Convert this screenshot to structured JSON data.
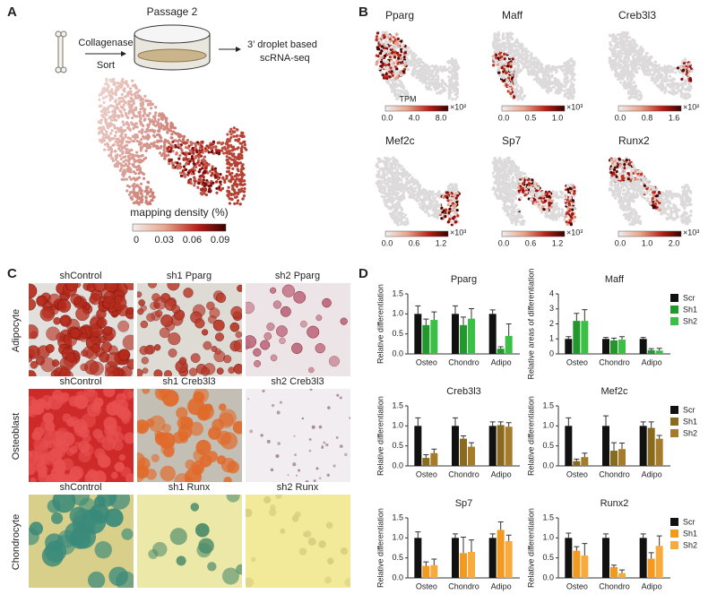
{
  "panel_labels": [
    "A",
    "B",
    "C",
    "D"
  ],
  "panel_a": {
    "passage": "Passage 2",
    "step1": "Collagenase",
    "step2": "Sort",
    "method_line1": "3’ droplet based",
    "method_line2": "scRNA-seq",
    "colorbar_title": "mapping density (%)",
    "colorbar_ticks": [
      "0",
      "0.03",
      "0.06",
      "0.09"
    ]
  },
  "panel_b": {
    "unit": "TPM",
    "genes": [
      {
        "name": "Pparg",
        "ticks": [
          "0.0",
          "4.0",
          "8.0"
        ],
        "exponent": "×10²"
      },
      {
        "name": "Maff",
        "ticks": [
          "0.0",
          "0.5",
          "1.0"
        ],
        "exponent": "×10³"
      },
      {
        "name": "Creb3l3",
        "ticks": [
          "0.0",
          "0.8",
          "1.6"
        ],
        "exponent": "×10²"
      },
      {
        "name": "Mef2c",
        "ticks": [
          "0.0",
          "0.6",
          "1.2"
        ],
        "exponent": "×10³"
      },
      {
        "name": "Sp7",
        "ticks": [
          "0.0",
          "0.6",
          "1.2"
        ],
        "exponent": "×10³"
      },
      {
        "name": "Runx2",
        "ticks": [
          "0.0",
          "1.0",
          "2.0"
        ],
        "exponent": "×10³"
      }
    ]
  },
  "panel_c": {
    "rows": [
      {
        "label": "Adipocyte",
        "images": [
          "shControl",
          "sh1 Pparg",
          "sh2 Pparg"
        ]
      },
      {
        "label": "Osteoblast",
        "images": [
          "shControl",
          "sh1 Creb3l3",
          "sh2 Creb3l3"
        ]
      },
      {
        "label": "Chondrocyte",
        "images": [
          "shControl",
          "sh1 Runx",
          "sh2 Runx"
        ]
      }
    ]
  },
  "chart_data": [
    {
      "type": "bar",
      "categories": [
        "Osteo",
        "Chondro",
        "Adipo"
      ],
      "series": [
        {
          "name": "Scr",
          "color": "#111111"
        },
        {
          "name": "Sh1",
          "color": "#1f9a2a"
        },
        {
          "name": "Sh2",
          "color": "#3cbf46"
        }
      ],
      "subplots": [
        {
          "title": "Pparg",
          "ylabel": "Relative differentiation",
          "ylim": [
            0,
            1.5
          ],
          "yticks": [
            {
              "value": 0,
              "label": "0.0"
            },
            0.5,
            {
              "value": 1,
              "label": "1.0"
            },
            1.5
          ],
          "values": [
            [
              1.0,
              1.0,
              1.0
            ],
            [
              0.72,
              0.72,
              0.13
            ],
            [
              0.85,
              0.88,
              0.45
            ]
          ],
          "errors": [
            [
              0.2,
              0.2,
              0.1
            ],
            [
              0.15,
              0.2,
              0.05
            ],
            [
              0.2,
              0.25,
              0.3
            ]
          ]
        },
        {
          "title": "Maff",
          "ylabel": "Relative areas of differentiation",
          "ylim": [
            0,
            4
          ],
          "yticks": [
            0,
            1,
            2,
            3,
            4
          ],
          "values": [
            [
              1.0,
              1.0,
              1.0
            ],
            [
              2.2,
              0.9,
              0.25
            ],
            [
              2.2,
              0.95,
              0.22
            ]
          ],
          "errors": [
            [
              0.15,
              0.1,
              0.1
            ],
            [
              0.5,
              0.15,
              0.1
            ],
            [
              0.75,
              0.2,
              0.15
            ]
          ]
        }
      ]
    },
    {
      "type": "bar",
      "categories": [
        "Osteo",
        "Chondro",
        "Adipo"
      ],
      "series": [
        {
          "name": "Scr",
          "color": "#111111"
        },
        {
          "name": "Sh1",
          "color": "#8a6a1c"
        },
        {
          "name": "Sh2",
          "color": "#a57c2c"
        }
      ],
      "subplots": [
        {
          "title": "Creb3l3",
          "ylabel": "Relative differentiation",
          "ylim": [
            0,
            1.5
          ],
          "yticks": [
            {
              "value": 0,
              "label": "0.0"
            },
            0.5,
            {
              "value": 1,
              "label": "1.0"
            },
            1.5
          ],
          "values": [
            [
              1.0,
              1.0,
              1.0
            ],
            [
              0.2,
              0.68,
              1.02
            ],
            [
              0.32,
              0.48,
              0.98
            ]
          ],
          "errors": [
            [
              0.2,
              0.2,
              0.1
            ],
            [
              0.08,
              0.07,
              0.08
            ],
            [
              0.1,
              0.1,
              0.1
            ]
          ]
        },
        {
          "title": "Mef2c",
          "ylabel": "Relative differentiation",
          "ylim": [
            0,
            1.5
          ],
          "yticks": [
            {
              "value": 0,
              "label": "0.0"
            },
            0.5,
            {
              "value": 1,
              "label": "1.0"
            },
            1.5
          ],
          "values": [
            [
              1.0,
              1.0,
              1.0
            ],
            [
              0.12,
              0.38,
              0.95
            ],
            [
              0.22,
              0.42,
              0.68
            ]
          ],
          "errors": [
            [
              0.2,
              0.25,
              0.1
            ],
            [
              0.05,
              0.2,
              0.15
            ],
            [
              0.1,
              0.15,
              0.08
            ]
          ]
        }
      ]
    },
    {
      "type": "bar",
      "categories": [
        "Osteo",
        "Chondro",
        "Adipo"
      ],
      "series": [
        {
          "name": "Scr",
          "color": "#111111"
        },
        {
          "name": "Sh1",
          "color": "#f39a1e"
        },
        {
          "name": "Sh2",
          "color": "#f7ab3c"
        }
      ],
      "subplots": [
        {
          "title": "Sp7",
          "ylabel": "Relative differentiation",
          "ylim": [
            0,
            1.5
          ],
          "yticks": [
            {
              "value": 0,
              "label": "0.0"
            },
            0.5,
            {
              "value": 1,
              "label": "1.0"
            },
            1.5
          ],
          "values": [
            [
              1.0,
              1.0,
              1.0
            ],
            [
              0.3,
              0.62,
              1.2
            ],
            [
              0.32,
              0.65,
              0.92
            ]
          ],
          "errors": [
            [
              0.15,
              0.1,
              0.1
            ],
            [
              0.1,
              0.4,
              0.2
            ],
            [
              0.15,
              0.3,
              0.15
            ]
          ]
        },
        {
          "title": "Runx2",
          "ylabel": "Relative differentiation",
          "ylim": [
            0,
            1.5
          ],
          "yticks": [
            {
              "value": 0,
              "label": "0.0"
            },
            0.5,
            {
              "value": 1,
              "label": "1.0"
            },
            1.5
          ],
          "values": [
            [
              1.0,
              1.0,
              1.0
            ],
            [
              0.68,
              0.27,
              0.48
            ],
            [
              0.56,
              0.12,
              0.8
            ]
          ],
          "errors": [
            [
              0.12,
              0.1,
              0.1
            ],
            [
              0.1,
              0.05,
              0.15
            ],
            [
              0.3,
              0.08,
              0.25
            ]
          ]
        }
      ]
    }
  ]
}
